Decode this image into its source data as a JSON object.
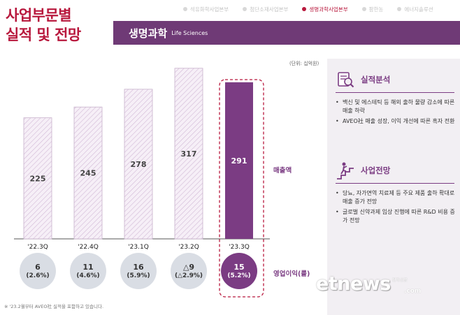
{
  "main_title": {
    "line1": "사업부문별",
    "line2": "실적 및 전망"
  },
  "top_tabs": [
    {
      "label": "석유화학사업본부",
      "active": false
    },
    {
      "label": "첨단소재사업본부",
      "active": false
    },
    {
      "label": "생명과학사업본부",
      "active": true
    },
    {
      "label": "팜한농",
      "active": false
    },
    {
      "label": "에너지솔루션",
      "active": false
    }
  ],
  "section": {
    "title": "생명과학",
    "subtitle": "Life Sciences"
  },
  "unit_label": "(단위: 십억원)",
  "chart_data": {
    "type": "bar",
    "categories": [
      "'22.3Q",
      "'22.4Q",
      "'23.1Q",
      "'23.2Q",
      "'23.3Q"
    ],
    "series": [
      {
        "name": "매출액",
        "values": [
          225,
          245,
          278,
          317,
          291
        ]
      }
    ],
    "value_labels": [
      "225",
      "245",
      "278",
      "317",
      "291"
    ],
    "highlight_index": 4,
    "ylim": [
      0,
      340
    ],
    "operating_profit": {
      "name": "영업이익(률)",
      "values": [
        "6",
        "11",
        "16",
        "△9",
        "15"
      ],
      "margins": [
        "(2.6%)",
        "(4.6%)",
        "(5.9%)",
        "(△2.9%)",
        "(5.2%)"
      ]
    },
    "legend": {
      "sales": "매출액",
      "operating_profit": "영업이익(률)"
    },
    "colors": {
      "bar_hatch": "#d8c3dc",
      "bar_highlight": "#7b3c83",
      "circle": "#d9dde4"
    }
  },
  "performance": {
    "title": "실적분석",
    "icon": "magnifier-document-icon",
    "bullets": [
      "백신 및 에스테틱 등 해외 출하 물량 감소에 따른 매출 하락",
      "AVEO社 매출 성장, 이익 개선에 따른 흑자 전환"
    ]
  },
  "outlook": {
    "title": "사업전망",
    "icon": "climbing-stairs-icon",
    "bullets": [
      "당뇨, 자가면역 치료제 등 주요 제품 출하 확대로 매출 증가 전망",
      "글로벌 신약과제 임상 진행에 따른 R&D 비용 증가 전망"
    ]
  },
  "footnote": "※ '23.2월부터 AVEO社 실적을 포함하고 있습니다.",
  "watermark": {
    "text": "etnews",
    "sub": "전자신문",
    "com": ".com"
  },
  "colors": {
    "brand_red": "#b8183d",
    "purple": "#7b3c83",
    "section_bar": "#6f3a76",
    "side_bg": "#f2eff3"
  }
}
